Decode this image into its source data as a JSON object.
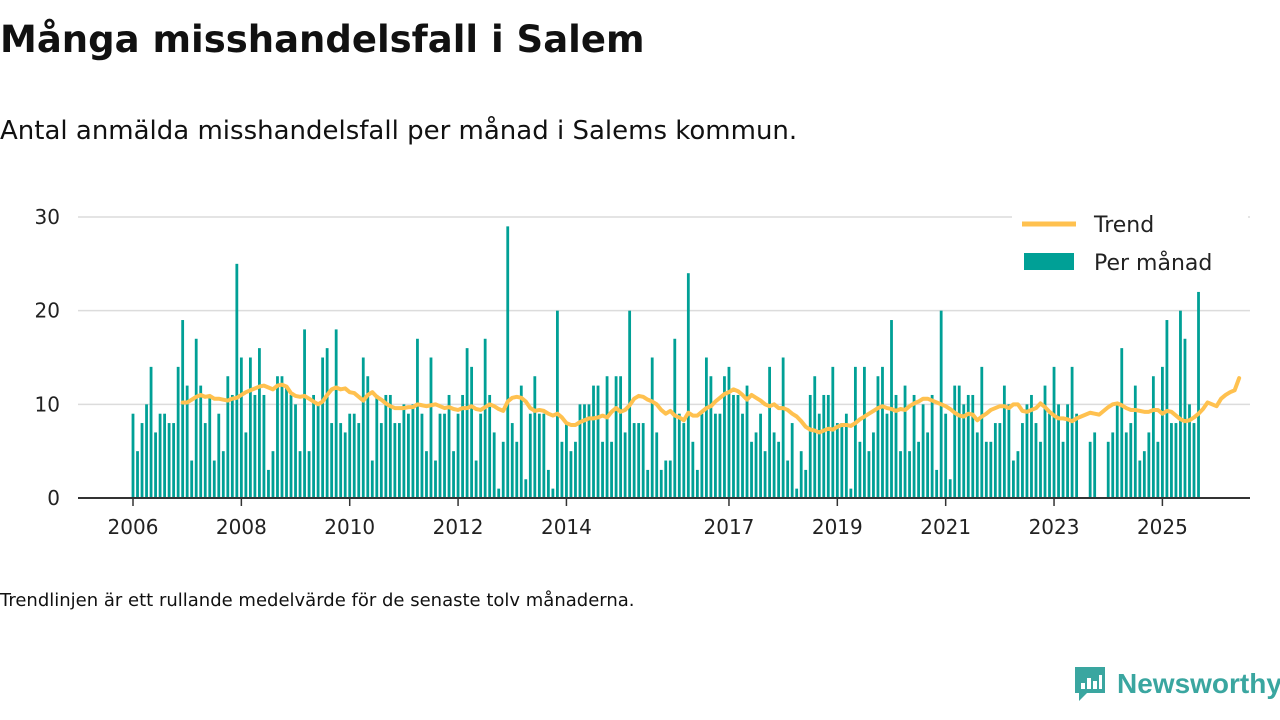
{
  "header": {
    "title": "Många misshandelsfall i Salem",
    "subtitle": "Antal anmälda misshandelsfall per månad i Salems kommun."
  },
  "footer": {
    "note": "Trendlinjen är ett rullande medelvärde för de senaste tolv månaderna.",
    "brand": "Newsworthy"
  },
  "colors": {
    "bars": "#00a096",
    "trend": "#ffc14f",
    "axis": "#333333",
    "grid": "#dcdcdc",
    "brand": "#3aa6a0"
  },
  "chart_data": {
    "type": "bar",
    "x_start": "2006-01",
    "x_end": "2025-08",
    "ylim": [
      0,
      30
    ],
    "yticks": [
      0,
      10,
      20,
      30
    ],
    "xticks": [
      {
        "label": "2006",
        "date": "2006-01"
      },
      {
        "label": "2008",
        "date": "2008-01"
      },
      {
        "label": "2010",
        "date": "2010-01"
      },
      {
        "label": "2012",
        "date": "2012-01"
      },
      {
        "label": "2014",
        "date": "2014-01"
      },
      {
        "label": "2017",
        "date": "2017-01"
      },
      {
        "label": "2019",
        "date": "2019-01"
      },
      {
        "label": "2021",
        "date": "2021-01"
      },
      {
        "label": "2023",
        "date": "2023-01"
      },
      {
        "label": "2025",
        "date": "2025-01"
      }
    ],
    "legend_position": "top-right",
    "grid": true,
    "series": [
      {
        "name": "Per månad",
        "type": "bar",
        "values": [
          9,
          5,
          8,
          10,
          14,
          7,
          9,
          9,
          8,
          8,
          14,
          19,
          12,
          4,
          17,
          12,
          8,
          11,
          4,
          9,
          5,
          13,
          11,
          25,
          15,
          7,
          15,
          11,
          16,
          11,
          3,
          5,
          13,
          13,
          12,
          11,
          10,
          5,
          18,
          5,
          11,
          10,
          15,
          16,
          8,
          18,
          8,
          7,
          9,
          9,
          8,
          15,
          13,
          4,
          11,
          8,
          11,
          11,
          8,
          8,
          10,
          9,
          10,
          17,
          9,
          5,
          15,
          4,
          9,
          9,
          11,
          5,
          9,
          11,
          16,
          14,
          4,
          9,
          17,
          11,
          7,
          1,
          6,
          29,
          8,
          6,
          12,
          2,
          9,
          13,
          9,
          9,
          3,
          1,
          20,
          6,
          8,
          5,
          6,
          10,
          10,
          10,
          12,
          12,
          6,
          13,
          6,
          13,
          13,
          7,
          20,
          8,
          8,
          8,
          3,
          15,
          7,
          3,
          4,
          4,
          17,
          9,
          8,
          24,
          6,
          3,
          9,
          15,
          13,
          9,
          9,
          13,
          14,
          11,
          11,
          9,
          12,
          6,
          7,
          9,
          5,
          14,
          7,
          6,
          15,
          4,
          8,
          1,
          5,
          3,
          11,
          13,
          9,
          11,
          11,
          14,
          8,
          8,
          9,
          1,
          14,
          6,
          14,
          5,
          7,
          13,
          14,
          9,
          19,
          11,
          5,
          12,
          5,
          11,
          6,
          10,
          7,
          11,
          3,
          20,
          9,
          2,
          12,
          12,
          10,
          11,
          11,
          7,
          14,
          6,
          6,
          8,
          8,
          12,
          10,
          4,
          5,
          8,
          10,
          11,
          8,
          6,
          12,
          9,
          14,
          10,
          6,
          10,
          14,
          9,
          0,
          0,
          6,
          7,
          0,
          0,
          6,
          7,
          10,
          16,
          7,
          8,
          12,
          4,
          5,
          7,
          13,
          6,
          14,
          19,
          8,
          8,
          20,
          17,
          10,
          8,
          22
        ]
      },
      {
        "name": "Trend",
        "type": "line",
        "values": [
          null,
          null,
          null,
          null,
          null,
          null,
          null,
          null,
          null,
          null,
          null,
          10.2,
          10.2,
          10.5,
          10.8,
          11.0,
          10.8,
          10.9,
          10.6,
          10.6,
          10.5,
          10.4,
          10.6,
          10.7,
          11.0,
          11.3,
          11.5,
          11.7,
          11.9,
          12.0,
          11.8,
          11.6,
          12.0,
          12.1,
          11.9,
          11.2,
          10.9,
          10.8,
          10.9,
          10.6,
          10.3,
          10.0,
          10.3,
          11.0,
          11.6,
          11.8,
          11.6,
          11.7,
          11.3,
          11.2,
          10.8,
          10.4,
          11.0,
          11.3,
          10.8,
          10.5,
          10.1,
          9.8,
          9.6,
          9.6,
          9.6,
          9.7,
          9.7,
          10.0,
          9.9,
          9.8,
          9.9,
          10.0,
          9.8,
          9.6,
          9.7,
          9.5,
          9.4,
          9.6,
          9.6,
          9.8,
          9.5,
          9.4,
          9.7,
          10.0,
          9.8,
          9.5,
          9.3,
          10.3,
          10.7,
          10.8,
          10.7,
          10.3,
          9.6,
          9.3,
          9.4,
          9.3,
          9.0,
          8.8,
          9.0,
          8.6,
          8.0,
          7.8,
          7.8,
          8.1,
          8.3,
          8.5,
          8.5,
          8.6,
          8.8,
          8.6,
          9.2,
          9.6,
          9.2,
          9.4,
          9.9,
          10.6,
          10.9,
          10.8,
          10.5,
          10.3,
          10.0,
          9.4,
          9.0,
          9.3,
          8.8,
          8.6,
          8.3,
          9.1,
          8.8,
          8.8,
          9.2,
          9.6,
          9.8,
          10.3,
          10.7,
          11.1,
          11.3,
          11.6,
          11.4,
          11.0,
          10.5,
          11.0,
          10.7,
          10.4,
          10.0,
          9.8,
          10.0,
          9.6,
          9.6,
          9.4,
          9.0,
          8.7,
          8.2,
          7.6,
          7.3,
          7.2,
          7.0,
          7.2,
          7.4,
          7.3,
          7.6,
          7.8,
          7.8,
          7.7,
          8.0,
          8.4,
          8.7,
          9.0,
          9.3,
          9.6,
          9.8,
          9.6,
          9.5,
          9.3,
          9.5,
          9.4,
          9.8,
          10.1,
          10.3,
          10.6,
          10.6,
          10.4,
          10.2,
          10.0,
          9.8,
          9.5,
          9.1,
          8.8,
          8.7,
          9.0,
          8.9,
          8.3,
          8.7,
          9.0,
          9.4,
          9.6,
          9.8,
          9.8,
          9.6,
          10.0,
          10.0,
          9.3,
          9.2,
          9.4,
          9.6,
          10.1,
          9.7,
          9.2,
          8.8,
          8.5,
          8.5,
          8.4,
          8.2,
          8.5,
          8.7,
          8.9,
          9.1,
          9.0,
          8.9,
          9.3,
          9.7,
          10.0,
          10.1,
          9.9,
          9.6,
          9.4,
          9.4,
          9.3,
          9.2,
          9.2,
          9.4,
          9.4,
          9.0,
          9.3,
          9.2,
          8.8,
          8.4,
          8.2,
          8.3,
          8.6,
          9.0,
          9.5,
          10.2,
          10.0,
          9.8,
          10.6,
          11.0,
          11.3,
          11.5,
          12.8
        ]
      }
    ]
  }
}
